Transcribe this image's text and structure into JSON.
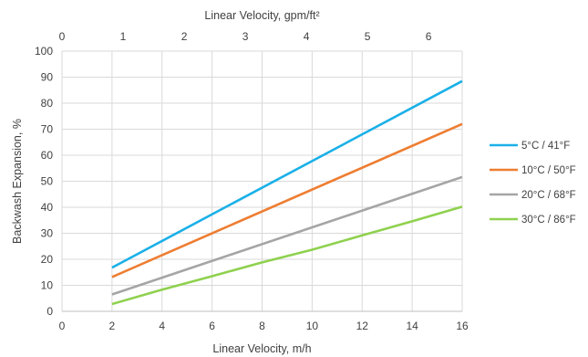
{
  "chart_data": {
    "type": "line",
    "xlabel": "Linear Velocity, m/h",
    "x2label": "Linear Velocity, gpm/ft²",
    "ylabel": "Backwash Expansion, %",
    "xlim": [
      0,
      16
    ],
    "x2lim": [
      0,
      6.55
    ],
    "ylim": [
      0,
      100
    ],
    "xticks": [
      0,
      2,
      4,
      6,
      8,
      10,
      12,
      14,
      16
    ],
    "x2ticks": [
      0,
      1,
      2,
      3,
      4,
      5,
      6
    ],
    "yticks": [
      0,
      10,
      20,
      30,
      40,
      50,
      60,
      70,
      80,
      90,
      100
    ],
    "grid": true,
    "legend_position": "right",
    "series": [
      {
        "name": "5°C / 41°F",
        "color": "#1ab0e8",
        "x": [
          2,
          16
        ],
        "y": [
          16.8,
          88.5
        ]
      },
      {
        "name": "10°C / 50°F",
        "color": "#ee7d31",
        "x": [
          2,
          16
        ],
        "y": [
          13.2,
          72.0
        ]
      },
      {
        "name": "20°C / 68°F",
        "color": "#a5a5a5",
        "x": [
          2,
          16
        ],
        "y": [
          6.5,
          51.6
        ]
      },
      {
        "name": "30°C / 86°F",
        "color": "#8fd14f",
        "x": [
          2,
          4,
          6,
          8,
          10,
          12,
          14,
          16
        ],
        "y": [
          2.8,
          8.3,
          13.5,
          18.8,
          23.7,
          29.2,
          34.6,
          40.2
        ]
      }
    ]
  }
}
